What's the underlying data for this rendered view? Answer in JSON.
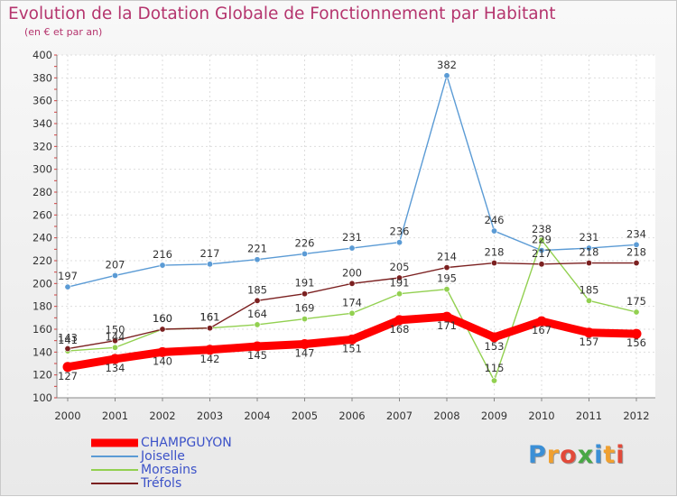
{
  "title": "Evolution de la Dotation Globale de Fonctionnement par Habitant",
  "subtitle": "(en € et par an)",
  "logo": [
    "P",
    "r",
    "o",
    "x",
    "i",
    "t",
    "i"
  ],
  "chart_data": {
    "type": "line",
    "x": [
      "2000",
      "2001",
      "2002",
      "2003",
      "2004",
      "2005",
      "2006",
      "2007",
      "2008",
      "2009",
      "2010",
      "2011",
      "2012"
    ],
    "ylim": [
      100,
      400
    ],
    "yticks": [
      100,
      120,
      140,
      160,
      180,
      200,
      220,
      240,
      260,
      280,
      300,
      320,
      340,
      360,
      380,
      400
    ],
    "grid": true,
    "legend_position": "bottom-left",
    "series": [
      {
        "name": "CHAMPGUYON",
        "color": "#ff0000",
        "values": [
          127,
          134,
          140,
          142,
          145,
          147,
          151,
          168,
          171,
          153,
          167,
          157,
          156
        ]
      },
      {
        "name": "Joiselle",
        "color": "#5b9bd5",
        "values": [
          197,
          207,
          216,
          217,
          221,
          226,
          231,
          236,
          382,
          246,
          229,
          231,
          234
        ]
      },
      {
        "name": "Morsains",
        "color": "#92d050",
        "values": [
          141,
          144,
          160,
          161,
          164,
          169,
          174,
          191,
          195,
          115,
          238,
          185,
          175
        ]
      },
      {
        "name": "Tréfols",
        "color": "#7b2020",
        "values": [
          143,
          150,
          160,
          161,
          185,
          191,
          200,
          205,
          214,
          218,
          217,
          218,
          218
        ]
      }
    ]
  }
}
